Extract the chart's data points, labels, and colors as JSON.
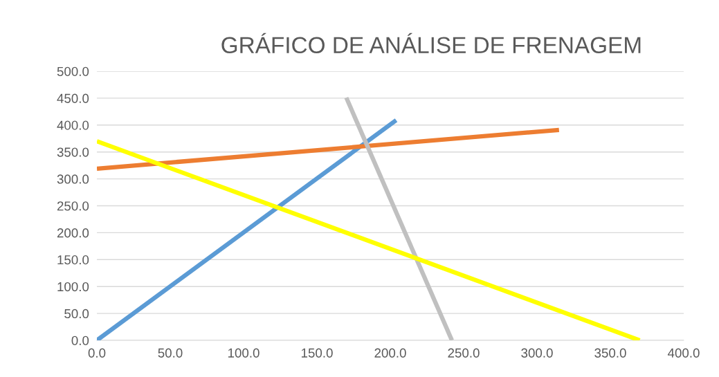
{
  "chart_data": {
    "type": "line",
    "title": "GRÁFICO DE ANÁLISE DE FRENAGEM",
    "series": [
      {
        "color": "#5b9bd5",
        "x": [
          0,
          204
        ],
        "values": [
          0,
          409
        ]
      },
      {
        "color": "#ed7d31",
        "x": [
          0,
          315
        ],
        "values": [
          319,
          391
        ]
      },
      {
        "color": "#c0c0c0",
        "x": [
          170,
          242
        ],
        "values": [
          451,
          0
        ]
      },
      {
        "color": "#ffff00",
        "x": [
          0,
          370
        ],
        "values": [
          370,
          0
        ]
      }
    ],
    "xlim": [
      0,
      400
    ],
    "ylim": [
      0,
      500
    ],
    "xticks": [
      {
        "value": 0,
        "label": "0.0"
      },
      {
        "value": 50,
        "label": "50.0"
      },
      {
        "value": 100,
        "label": "100.0"
      },
      {
        "value": 150,
        "label": "150.0"
      },
      {
        "value": 200,
        "label": "200.0"
      },
      {
        "value": 250,
        "label": "250.0"
      },
      {
        "value": 300,
        "label": "300.0"
      },
      {
        "value": 350,
        "label": "350.0"
      },
      {
        "value": 400,
        "label": "400.0"
      }
    ],
    "yticks": [
      {
        "value": 0,
        "label": "0.0"
      },
      {
        "value": 50,
        "label": "50.0"
      },
      {
        "value": 100,
        "label": "100.0"
      },
      {
        "value": 150,
        "label": "150.0"
      },
      {
        "value": 200,
        "label": "200.0"
      },
      {
        "value": 250,
        "label": "250.0"
      },
      {
        "value": 300,
        "label": "300.0"
      },
      {
        "value": 350,
        "label": "350.0"
      },
      {
        "value": 400,
        "label": "400.0"
      },
      {
        "value": 450,
        "label": "450.0"
      },
      {
        "value": 500,
        "label": "500.0"
      }
    ],
    "grid": "y",
    "marker": "none",
    "line_style": "solid"
  }
}
